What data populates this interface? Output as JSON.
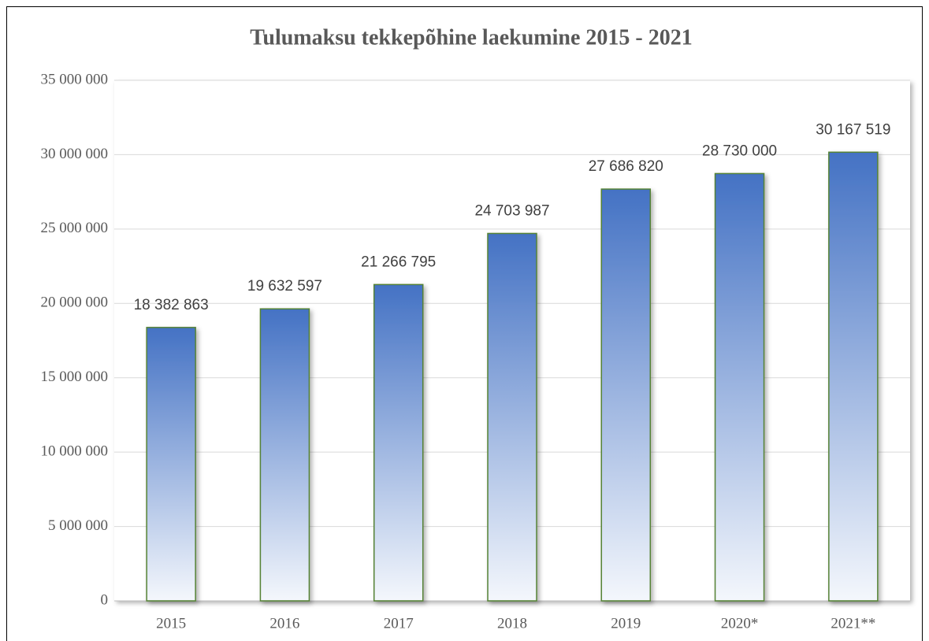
{
  "chart_data": {
    "type": "bar",
    "title": "Tulumaksu tekkepõhine laekumine 2015 - 2021",
    "categories": [
      "2015",
      "2016",
      "2017",
      "2018",
      "2019",
      "2020*",
      "2021**"
    ],
    "values": [
      18382863,
      19632597,
      21266795,
      24703987,
      27686820,
      28730000,
      30167519
    ],
    "value_labels": [
      "18 382 863",
      "19 632 597",
      "21 266 795",
      "24 703 987",
      "27 686 820",
      "28 730 000",
      "30 167 519"
    ],
    "color": "#4472c4",
    "edgecolor": "#548235",
    "ylim": [
      0,
      35000000
    ],
    "yticks": [
      0,
      {
        "value": 5000000,
        "label": "5 000 000"
      },
      {
        "value": 10000000,
        "label": "10 000 000"
      },
      {
        "value": 15000000,
        "label": "15 000 000"
      },
      {
        "value": 20000000,
        "label": "20 000 000"
      },
      {
        "value": 25000000,
        "label": "25 000 000"
      },
      {
        "value": 30000000,
        "label": "30 000 000"
      },
      {
        "value": 35000000,
        "label": "35 000 000"
      }
    ],
    "grid": true
  }
}
